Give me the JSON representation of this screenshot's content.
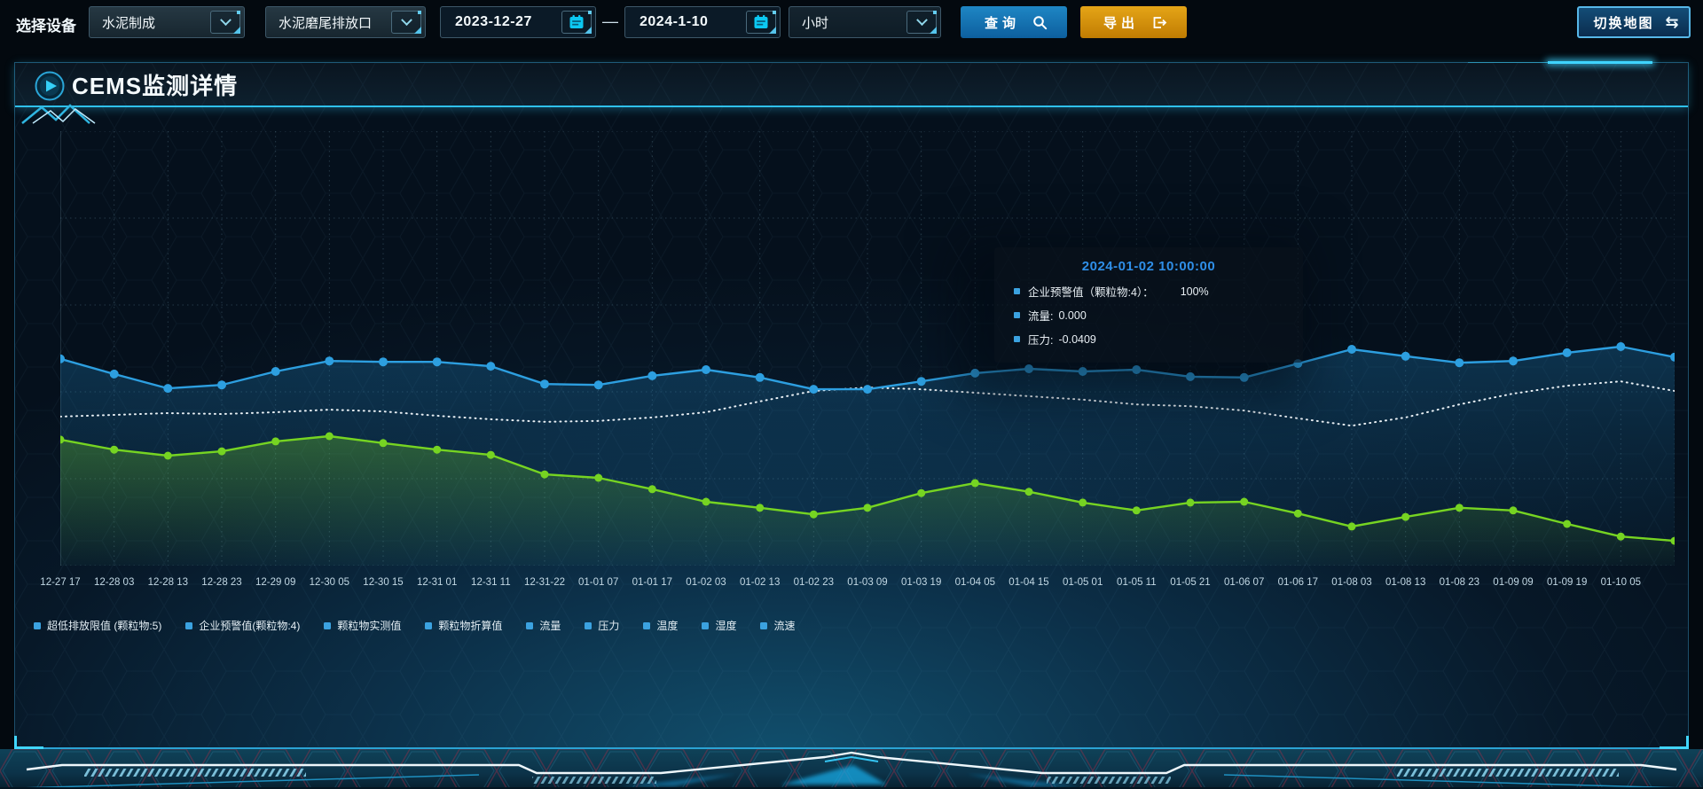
{
  "toolbar": {
    "device_label": "选择设备",
    "device_group_select": {
      "value": "水泥制成"
    },
    "outlet_select": {
      "value": "水泥磨尾排放口"
    },
    "date_start": {
      "value": "2023-12-27"
    },
    "date_separator": "—",
    "date_end": {
      "value": "2024-1-10"
    },
    "interval_select": {
      "value": "小时"
    },
    "query_label": "查询",
    "export_label": "导出",
    "switch_map_label": "切换地图",
    "swap_icon_glyph": "⇆"
  },
  "panel": {
    "title": "CEMS监测详情"
  },
  "tooltip": {
    "title": "2024-01-02 10:00:00",
    "rows": [
      {
        "label": "企业预警值（颗粒物:4）：",
        "value": "100%"
      },
      {
        "label": "流量:",
        "value": "0.000"
      },
      {
        "label": "压力:",
        "value": "-0.0409"
      }
    ]
  },
  "chart_data": {
    "type": "line",
    "title": "",
    "xlabel": "",
    "ylabel": "",
    "ylim": [
      0,
      100
    ],
    "grid": true,
    "legend_position": "bottom",
    "note": "No y-axis labels are shown on screen; series values are estimated as percent of plot height (0=bottom, 100=top). 31 points span the plot; the 30 x labels align with points 0-29.",
    "x": [
      "12-27 17",
      "12-28 03",
      "12-28 13",
      "12-28 23",
      "12-29 09",
      "12-30 05",
      "12-30 15",
      "12-31 01",
      "12-31 11",
      "12-31-22",
      "01-01 07",
      "01-01 17",
      "01-02 03",
      "01-02 13",
      "01-02 23",
      "01-03 09",
      "01-03 19",
      "01-04 05",
      "01-04 15",
      "01-05 01",
      "01-05 11",
      "01-05 21",
      "01-06 07",
      "01-06 17",
      "01-08 03",
      "01-08 13",
      "01-08 23",
      "01-09 09",
      "01-09 19",
      "01-10 05"
    ],
    "series": [
      {
        "name": "企业预警值(颗粒物:4)",
        "color": "#2d9fe0",
        "style": "solid",
        "dots": true,
        "dot_r": 5,
        "area": true,
        "z": 3,
        "values": [
          47.6,
          44.1,
          40.8,
          41.6,
          44.7,
          47.1,
          46.9,
          46.9,
          45.9,
          41.8,
          41.6,
          43.7,
          45.1,
          43.3,
          40.6,
          40.6,
          42.4,
          44.3,
          45.3,
          44.7,
          45.1,
          43.5,
          43.3,
          46.5,
          49.8,
          48.2,
          46.7,
          47.1,
          49.0,
          50.4,
          48.0
        ]
      },
      {
        "name": "压力",
        "color": "#e8eff4",
        "style": "dotted",
        "dots": false,
        "dot_r": 0,
        "area": false,
        "z": 2,
        "values": [
          34.3,
          34.7,
          35.1,
          34.9,
          35.3,
          35.9,
          35.5,
          34.5,
          33.7,
          33.1,
          33.3,
          34.1,
          35.3,
          37.8,
          40.2,
          41.0,
          40.6,
          39.8,
          39.0,
          38.2,
          37.1,
          36.7,
          35.7,
          33.9,
          32.2,
          34.1,
          37.1,
          39.6,
          41.4,
          42.4,
          40.2
        ]
      },
      {
        "name": "流量",
        "color": "#76d422",
        "style": "solid",
        "dots": true,
        "dot_r": 4.5,
        "area": true,
        "z": 3,
        "values": [
          29.0,
          26.7,
          25.3,
          26.3,
          28.6,
          29.8,
          28.2,
          26.7,
          25.5,
          21.0,
          20.2,
          17.6,
          14.7,
          13.3,
          11.8,
          13.3,
          16.7,
          19.0,
          17.0,
          14.5,
          12.7,
          14.5,
          14.7,
          12.0,
          9.0,
          11.2,
          13.3,
          12.7,
          9.6,
          6.7,
          5.7
        ]
      }
    ],
    "legend": [
      "超低排放限值 (颗粒物:5)",
      "企业预警值(颗粒物:4)",
      "颗粒物实测值",
      "颗粒物折算值",
      "流量",
      "压力",
      "温度",
      "湿度",
      "流速"
    ]
  },
  "colors": {
    "accent_cyan": "#2fc0ea",
    "query_button": "#1580c2",
    "export_button": "#d9960f",
    "tooltip_title": "#2f8fe8",
    "legend_marker": "#3ba2e0",
    "blue_series": "#2d9fe0",
    "green_series": "#76d422",
    "dotted_series": "#e8eff4"
  }
}
